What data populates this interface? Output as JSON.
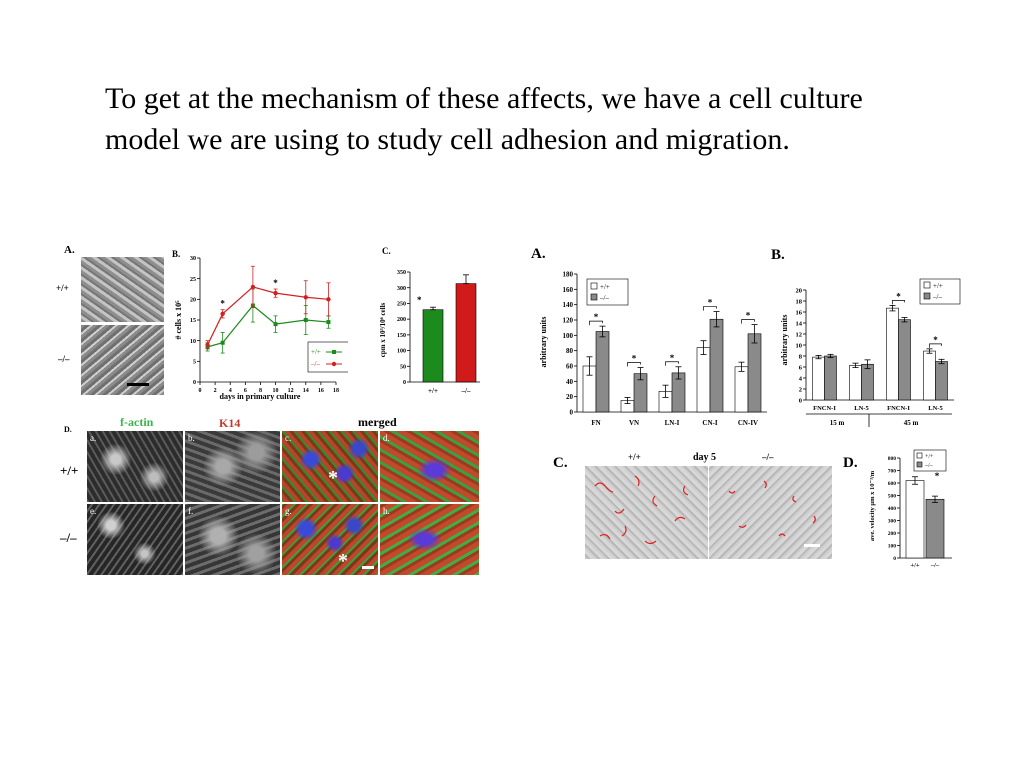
{
  "slide": {
    "body_text": "To get at the mechanism of these affects, we have a cell culture model we are using to study cell adhesion and migration."
  },
  "left_figure": {
    "panel_A": {
      "label": "A.",
      "rows": [
        "+/+",
        "–/–"
      ]
    },
    "panel_B": {
      "label": "B.",
      "xlabel": "days in primary culture",
      "ylabel": "# cells x 10⁵",
      "legend": [
        "+/+",
        "–/–"
      ],
      "star": "*"
    },
    "panel_C": {
      "label": "C.",
      "ylabel": "cpm x 10³/10⁶ cells",
      "categories": [
        "+/+",
        "–/–"
      ],
      "star": "*"
    },
    "panel_D": {
      "label": "D.",
      "headers": {
        "factin": "f-actin",
        "k14": "K14",
        "merged": "merged"
      },
      "rows": [
        "+/+",
        "–/–"
      ],
      "sublabels": [
        "a.",
        "b.",
        "c.",
        "d.",
        "e.",
        "f.",
        "g.",
        "h."
      ],
      "asterisk": "*"
    }
  },
  "right_figure": {
    "panel_A": {
      "label": "A.",
      "ylabel": "arbitrary units",
      "legend": [
        "+/+",
        "–/–"
      ],
      "star": "*"
    },
    "panel_B": {
      "label": "B.",
      "ylabel": "arbitrary units",
      "legend": [
        "+/+",
        "–/–"
      ],
      "groups": [
        "15 m",
        "45 m"
      ],
      "star": "*"
    },
    "panel_C": {
      "label": "C.",
      "genotype_left": "+/+",
      "title": "day 5",
      "genotype_right": "–/–"
    },
    "panel_D": {
      "label": "D.",
      "ylabel": "ave. velocity μm x 10⁻³/m",
      "legend": [
        "+/+",
        "–/–"
      ],
      "categories": [
        "+/+",
        "–/–"
      ],
      "star": "*"
    }
  },
  "chart_data": [
    {
      "type": "line",
      "panel": "left B",
      "xlabel": "days in primary culture",
      "ylabel": "# cells x 10⁵",
      "xlim": [
        0,
        18
      ],
      "ylim": [
        0,
        30
      ],
      "x_ticks": [
        0,
        2,
        4,
        6,
        8,
        10,
        12,
        14,
        16,
        18
      ],
      "y_ticks": [
        0,
        5,
        10,
        15,
        20,
        25,
        30
      ],
      "series": [
        {
          "name": "+/+",
          "color": "#1a8a1a",
          "x": [
            1,
            3,
            7,
            10,
            14,
            17
          ],
          "y": [
            8.5,
            9.5,
            18.5,
            14,
            15,
            14.5
          ],
          "err": [
            1,
            2.5,
            4,
            2,
            3.5,
            1.5
          ]
        },
        {
          "name": "–/–",
          "color": "#d42020",
          "x": [
            1,
            3,
            7,
            10,
            14,
            17
          ],
          "y": [
            9,
            16.5,
            23,
            21.5,
            20.5,
            20
          ],
          "err": [
            1,
            1,
            5,
            1,
            4,
            4
          ]
        }
      ],
      "stars_at_x": [
        3,
        10
      ]
    },
    {
      "type": "bar",
      "panel": "left C",
      "categories": [
        "+/+",
        "–/–"
      ],
      "values": [
        230,
        313
      ],
      "err": [
        8,
        28
      ],
      "colors": [
        "#1c8a1c",
        "#d11a1a"
      ],
      "ylim": [
        0,
        350
      ],
      "y_ticks": [
        0,
        50,
        100,
        150,
        200,
        250,
        300,
        350
      ]
    },
    {
      "type": "bar",
      "panel": "right A",
      "ylabel": "arbitrary units",
      "categories": [
        "FN",
        "VN",
        "LN-I",
        "CN-I",
        "CN-IV"
      ],
      "series": [
        {
          "name": "+/+",
          "color": "#ffffff",
          "values": [
            60,
            15,
            27,
            84,
            59
          ],
          "err": [
            12,
            4,
            8,
            9,
            6
          ]
        },
        {
          "name": "–/–",
          "color": "#8a8a8a",
          "values": [
            105,
            50,
            51,
            121,
            102
          ],
          "err": [
            7,
            8,
            8,
            10,
            12
          ]
        }
      ],
      "ylim": [
        0,
        180
      ],
      "y_ticks": [
        0,
        20,
        40,
        60,
        80,
        100,
        120,
        140,
        160,
        180
      ]
    },
    {
      "type": "bar",
      "panel": "right B",
      "ylabel": "arbitrary units",
      "categories": [
        "FNCN-I",
        "LN-5",
        "FNCN-I",
        "LN-5"
      ],
      "groups": [
        "15 m",
        "15 m",
        "45 m",
        "45 m"
      ],
      "series": [
        {
          "name": "+/+",
          "color": "#ffffff",
          "values": [
            7.8,
            6.3,
            16.7,
            8.9
          ],
          "err": [
            0.3,
            0.4,
            0.5,
            0.4
          ]
        },
        {
          "name": "–/–",
          "color": "#8a8a8a",
          "values": [
            8.0,
            6.5,
            14.6,
            7.0
          ],
          "err": [
            0.3,
            0.8,
            0.4,
            0.4
          ]
        }
      ],
      "ylim": [
        0,
        20
      ],
      "y_ticks": [
        0,
        2,
        4,
        6,
        8,
        10,
        12,
        14,
        16,
        18,
        20
      ]
    },
    {
      "type": "bar",
      "panel": "right D",
      "ylabel": "ave. velocity μm x 10⁻³/m",
      "categories": [
        "+/+",
        "–/–"
      ],
      "values": [
        620,
        470
      ],
      "err": [
        30,
        25
      ],
      "colors": [
        "#ffffff",
        "#8a8a8a"
      ],
      "ylim": [
        0,
        800
      ],
      "y_ticks": [
        0,
        100,
        200,
        300,
        400,
        500,
        600,
        700,
        800
      ]
    }
  ]
}
